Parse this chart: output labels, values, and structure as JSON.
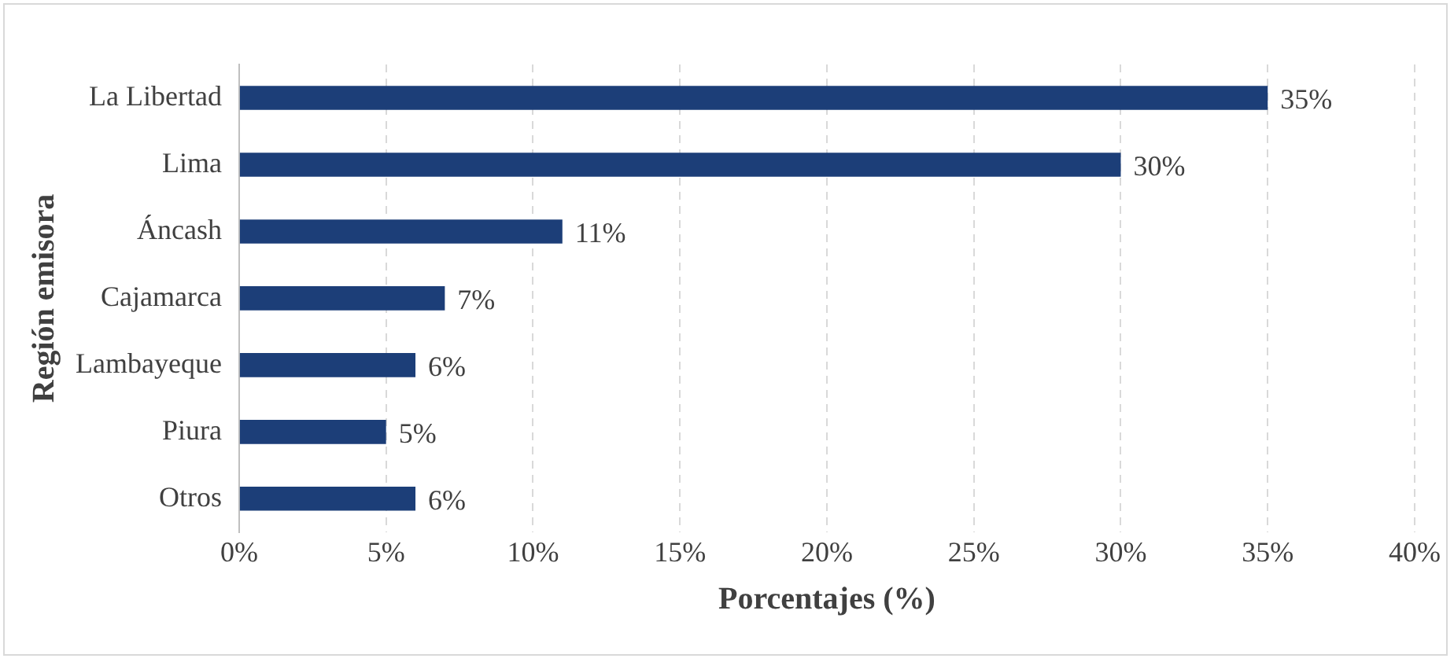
{
  "chart_data": {
    "type": "bar",
    "orientation": "horizontal",
    "xlabel": "Porcentajes (%)",
    "ylabel": "Región emisora",
    "categories": [
      "La Libertad",
      "Lima",
      "Áncash",
      "Cajamarca",
      "Lambayeque",
      "Piura",
      "Otros"
    ],
    "values": [
      35,
      30,
      11,
      7,
      6,
      5,
      6
    ],
    "value_labels": [
      "35%",
      "30%",
      "11%",
      "7%",
      "6%",
      "5%",
      "6%"
    ],
    "color": "#1c3e78",
    "xlim": [
      0,
      40
    ],
    "xticks": [
      {
        "value": 0,
        "label": "0%"
      },
      {
        "value": 5,
        "label": "5%"
      },
      {
        "value": 10,
        "label": "10%"
      },
      {
        "value": 15,
        "label": "15%"
      },
      {
        "value": 20,
        "label": "20%"
      },
      {
        "value": 25,
        "label": "25%"
      },
      {
        "value": 30,
        "label": "30%"
      },
      {
        "value": 35,
        "label": "35%"
      },
      {
        "value": 40,
        "label": "40%"
      }
    ],
    "grid": "x",
    "legend": false
  }
}
